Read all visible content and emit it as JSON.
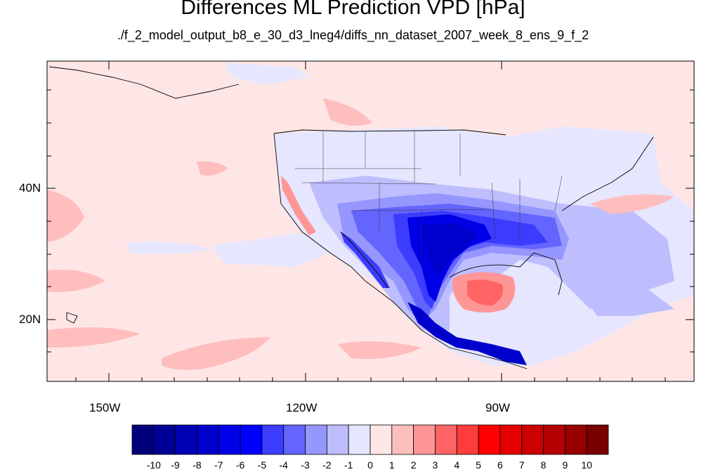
{
  "title": "Differences ML Prediction VPD [hPa]",
  "subtitle": "./f_2_model_output_b8_e_30_d3_lneg4/diffs_nn_dataset_2007_week_8_ens_9_f_2",
  "axes": {
    "lat_labels": [
      "40N",
      "20N"
    ],
    "lon_labels": [
      "150W",
      "120W",
      "90W"
    ]
  },
  "colorbar": {
    "labels": [
      "-10",
      "-9",
      "-8",
      "-7",
      "-6",
      "-5",
      "-4",
      "-3",
      "-2",
      "-1",
      "0",
      "1",
      "2",
      "3",
      "4",
      "5",
      "6",
      "7",
      "8",
      "9",
      "10"
    ],
    "colors": [
      "#00007a",
      "#000096",
      "#0000b4",
      "#0000cc",
      "#0000e6",
      "#0000ff",
      "#3c3cff",
      "#6464ff",
      "#9696ff",
      "#bebeff",
      "#e6e6ff",
      "#ffe6e6",
      "#ffbebe",
      "#ff9696",
      "#ff6464",
      "#ff3c3c",
      "#ff0000",
      "#e60000",
      "#cc0000",
      "#b40000",
      "#960000",
      "#7a0000"
    ]
  }
}
